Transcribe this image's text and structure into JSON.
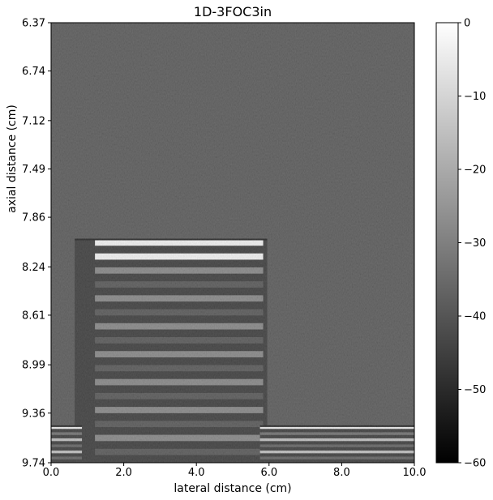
{
  "chart_data": {
    "type": "heatmap",
    "title": "1D-3FOC3in",
    "xlabel": "lateral distance (cm)",
    "ylabel": "axial distance (cm)",
    "xlim": [
      0.0,
      10.0
    ],
    "ylim": [
      6.37,
      9.74
    ],
    "y_inverted": true,
    "x_ticks": [
      "0.0",
      "2.0",
      "4.0",
      "6.0",
      "8.0",
      "10.0"
    ],
    "x_tick_values": [
      0,
      2,
      4,
      6,
      8,
      10
    ],
    "y_ticks": [
      "6.37",
      "6.74",
      "7.12",
      "7.49",
      "7.86",
      "8.24",
      "8.61",
      "8.99",
      "9.36",
      "9.74"
    ],
    "y_tick_values": [
      6.37,
      6.74,
      7.12,
      7.49,
      7.86,
      8.24,
      8.61,
      8.99,
      9.36,
      9.74
    ],
    "colormap": "gray",
    "colorbar": {
      "range": [
        -60,
        0
      ],
      "ticks": [
        "0",
        "−10",
        "−20",
        "−30",
        "−40",
        "−50",
        "−60"
      ],
      "tick_values": [
        0,
        -10,
        -20,
        -30,
        -40,
        -50,
        -60
      ]
    },
    "background_level_db": -42,
    "features": [
      {
        "shape": "block",
        "x_range": [
          0.65,
          5.95
        ],
        "y_range": [
          8.03,
          9.74
        ],
        "bright_top_edge_db": -3
      },
      {
        "shape": "block",
        "x_range": [
          0.0,
          0.85
        ],
        "y_range": [
          9.46,
          9.74
        ],
        "bright_top_edge_db": -5
      },
      {
        "shape": "block",
        "x_range": [
          5.75,
          10.0
        ],
        "y_range": [
          9.46,
          9.74
        ],
        "bright_top_edge_db": -5
      }
    ]
  }
}
